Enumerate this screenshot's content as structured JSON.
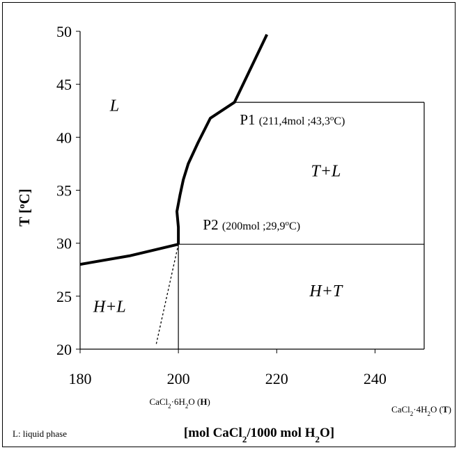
{
  "chart_data": {
    "type": "line",
    "title": "",
    "xlabel_parts": {
      "pre": "[mol CaCl",
      "sub1": "2",
      "mid": "/1000 mol H",
      "sub2": "2",
      "post": "O]"
    },
    "ylabel": "T  [",
    "ylabel_sup": "o",
    "ylabel_post": "C]",
    "xlim": [
      180,
      250
    ],
    "ylim": [
      20,
      50
    ],
    "x_ticks": [
      180,
      200,
      220,
      240
    ],
    "y_ticks": [
      20,
      25,
      30,
      35,
      40,
      45,
      50
    ],
    "series": [
      {
        "style": "thick",
        "points": [
          [
            180,
            28
          ],
          [
            190,
            28.8
          ],
          [
            195,
            29.35
          ],
          [
            200,
            29.9
          ]
        ]
      },
      {
        "style": "thick",
        "points": [
          [
            200,
            29.9
          ],
          [
            200,
            31.5
          ],
          [
            199.7,
            33
          ],
          [
            200.3,
            34.5
          ],
          [
            201,
            36
          ],
          [
            202,
            37.5
          ],
          [
            204,
            39.5
          ],
          [
            206.5,
            41.8
          ],
          [
            211.4,
            43.3
          ],
          [
            218,
            49.7
          ]
        ]
      },
      {
        "style": "thin",
        "points": [
          [
            211.4,
            43.3
          ],
          [
            250,
            43.3
          ]
        ]
      },
      {
        "style": "thin",
        "points": [
          [
            200,
            29.9
          ],
          [
            250,
            29.9
          ]
        ]
      },
      {
        "style": "thin",
        "points": [
          [
            200,
            20
          ],
          [
            200,
            29.9
          ]
        ]
      },
      {
        "style": "thin",
        "points": [
          [
            250,
            20
          ],
          [
            250,
            43.3
          ]
        ]
      },
      {
        "style": "dotted",
        "points": [
          [
            195.5,
            20.5
          ],
          [
            200,
            29.9
          ]
        ]
      }
    ],
    "regions": [
      {
        "label": "L",
        "x": 187,
        "y": 42.5
      },
      {
        "label": "T+L",
        "x": 230,
        "y": 36.3
      },
      {
        "label": "H+T",
        "x": 230,
        "y": 25
      },
      {
        "label": "H+L",
        "x": 186,
        "y": 23.5
      }
    ],
    "points": [
      {
        "name": "P1",
        "detail_pre": "(211,4mol ;43,3",
        "detail_sup": "o",
        "detail_post": "C)",
        "x": 211.4,
        "y": 43.3,
        "label_x": 212.5,
        "label_y": 41.2
      },
      {
        "name": "P2",
        "detail_pre": "(200mol ;29,9",
        "detail_sup": "o",
        "detail_post": "C)",
        "x": 200,
        "y": 29.9,
        "label_x": 205,
        "label_y": 31.3
      }
    ],
    "compositions": [
      {
        "formula_pre": "CaCl",
        "formula_sub": "2",
        "formula_mid": "·6H",
        "formula_sub2": "2",
        "formula_post": "O (",
        "symbol": "H",
        "close": ")",
        "x": 200
      },
      {
        "formula_pre": "CaCl",
        "formula_sub": "2",
        "formula_mid": "·4H",
        "formula_sub2": "2",
        "formula_post": "O (",
        "symbol": "T",
        "close": ")",
        "x": 250
      }
    ],
    "note": "L: liquid phase"
  }
}
